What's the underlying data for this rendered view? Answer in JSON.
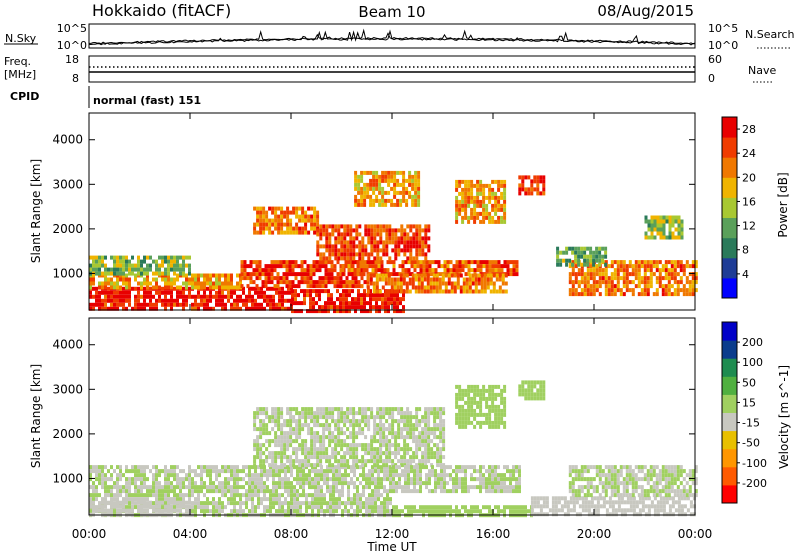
{
  "header": {
    "station": "Hokkaido (fitACF)",
    "beam": "Beam 10",
    "date": "08/Aug/2015"
  },
  "noise_panel": {
    "left_label": "N.Sky",
    "right_label": "N.Search",
    "left_ticks": [
      "10^5",
      "10^0"
    ],
    "right_ticks": [
      "10^5",
      "10^0"
    ]
  },
  "freq_panel": {
    "left_label_1": "Freq.",
    "left_label_2": "[MHz]",
    "right_label": "Nave",
    "left_ticks": [
      "18",
      "8"
    ],
    "right_ticks": [
      "60",
      "0"
    ],
    "cpid_label": "CPID",
    "cpid_text": "normal (fast) 151"
  },
  "colors": {
    "power": [
      "#0000ff",
      "#1e3c96",
      "#2a7a5a",
      "#5aa05a",
      "#a8c832",
      "#f0b400",
      "#f07800",
      "#f03c00",
      "#e80000"
    ],
    "velocity": [
      "#ff0000",
      "#ff5a00",
      "#ff9600",
      "#e8c000",
      "#c8c8c0",
      "#a0d060",
      "#50b040",
      "#1e8c50",
      "#0a3c8c",
      "#0000c8"
    ]
  },
  "chart_data": [
    {
      "type": "heatmap",
      "panel": "power",
      "xlabel": "",
      "ylabel": "Slant Range [km]",
      "x_ticks": [
        "00:00",
        "04:00",
        "08:00",
        "12:00",
        "16:00",
        "20:00",
        "00:00"
      ],
      "y_ticks": [
        "1000",
        "2000",
        "3000",
        "4000"
      ],
      "ylim": [
        180,
        4600
      ],
      "colorbar": {
        "label": "Power [dB]",
        "ticks": [
          "4",
          "8",
          "12",
          "16",
          "20",
          "24",
          "28"
        ],
        "range": [
          0,
          30
        ]
      },
      "regions": [
        {
          "t": [
            0.0,
            8.0
          ],
          "r": [
            200,
            700
          ],
          "value": 28
        },
        {
          "t": [
            8.0,
            12.5
          ],
          "r": [
            200,
            650
          ],
          "value": 28
        },
        {
          "t": [
            0.0,
            6.0
          ],
          "r": [
            700,
            1000
          ],
          "value": 20
        },
        {
          "t": [
            6.0,
            11.0
          ],
          "r": [
            700,
            1300
          ],
          "value": 26
        },
        {
          "t": [
            10.0,
            17.0
          ],
          "r": [
            1000,
            1300
          ],
          "value": 24
        },
        {
          "t": [
            11.0,
            16.5
          ],
          "r": [
            600,
            1000
          ],
          "value": 22
        },
        {
          "t": [
            0.0,
            4.0
          ],
          "r": [
            1000,
            1400
          ],
          "value": 14
        },
        {
          "t": [
            6.5,
            9.0
          ],
          "r": [
            1900,
            2500
          ],
          "value": 22
        },
        {
          "t": [
            9.0,
            13.5
          ],
          "r": [
            1300,
            2100
          ],
          "value": 25
        },
        {
          "t": [
            10.5,
            13.0
          ],
          "r": [
            2500,
            3300
          ],
          "value": 20
        },
        {
          "t": [
            14.5,
            16.5
          ],
          "r": [
            2200,
            3100
          ],
          "value": 20
        },
        {
          "t": [
            17.0,
            18.0
          ],
          "r": [
            2800,
            3200
          ],
          "value": 26
        },
        {
          "t": [
            19.0,
            24.0
          ],
          "r": [
            500,
            1300
          ],
          "value": 22
        },
        {
          "t": [
            18.5,
            20.5
          ],
          "r": [
            1200,
            1600
          ],
          "value": 12
        },
        {
          "t": [
            22.0,
            23.5
          ],
          "r": [
            1800,
            2300
          ],
          "value": 14
        }
      ]
    },
    {
      "type": "heatmap",
      "panel": "velocity",
      "xlabel": "Time UT",
      "ylabel": "Slant Range [km]",
      "x_ticks": [
        "00:00",
        "04:00",
        "08:00",
        "12:00",
        "16:00",
        "20:00",
        "00:00"
      ],
      "y_ticks": [
        "1000",
        "2000",
        "3000",
        "4000"
      ],
      "ylim": [
        180,
        4600
      ],
      "colorbar": {
        "label": "Velocity [m s^-1]",
        "ticks": [
          "200",
          "100",
          "50",
          "15",
          "-15",
          "-50",
          "-100",
          "-200"
        ],
        "range": [
          -250,
          250
        ]
      },
      "regions": [
        {
          "t": [
            0.0,
            12.0
          ],
          "r": [
            200,
            1300
          ],
          "value": 0
        },
        {
          "t": [
            6.5,
            14.0
          ],
          "r": [
            1300,
            2600
          ],
          "value": 0
        },
        {
          "t": [
            12.0,
            17.0
          ],
          "r": [
            700,
            1300
          ],
          "value": 0
        },
        {
          "t": [
            17.0,
            18.0
          ],
          "r": [
            2800,
            3200
          ],
          "value": 30
        },
        {
          "t": [
            14.5,
            16.5
          ],
          "r": [
            2200,
            3100
          ],
          "value": 25
        },
        {
          "t": [
            12.0,
            17.5
          ],
          "r": [
            200,
            400
          ],
          "value": 40
        },
        {
          "t": [
            17.5,
            24.0
          ],
          "r": [
            200,
            600
          ],
          "value": -45
        },
        {
          "t": [
            19.0,
            24.0
          ],
          "r": [
            600,
            1300
          ],
          "value": 0
        },
        {
          "t": [
            0.0,
            4.0
          ],
          "r": [
            200,
            500
          ],
          "value": -30
        }
      ]
    }
  ]
}
